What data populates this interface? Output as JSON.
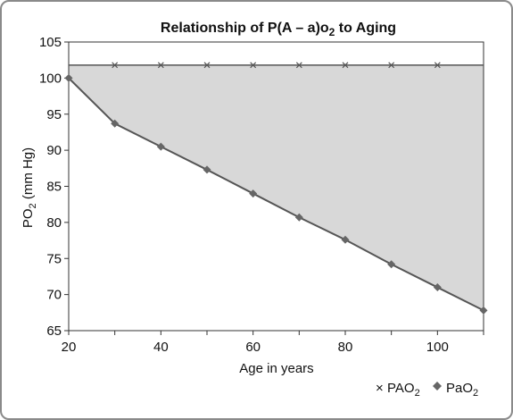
{
  "chart_data": {
    "type": "line",
    "title_main": "Relationship of P(A – a)o",
    "title_sub": "2",
    "title_end": " to Aging",
    "xlabel": "Age in years",
    "ylabel_main": "PO",
    "ylabel_sub": "2",
    "ylabel_end": " (mm Hg)",
    "xlim": [
      20,
      110
    ],
    "ylim": [
      65,
      105
    ],
    "x_ticks": [
      20,
      40,
      60,
      80,
      100
    ],
    "y_ticks": [
      65,
      70,
      75,
      80,
      85,
      90,
      95,
      100,
      105
    ],
    "grid": false,
    "legend_position": "bottom-right",
    "colors": {
      "pao2_alveolar": "#555555",
      "pao2_arterial": "#666666",
      "fill": "#d8d8d8"
    },
    "series": [
      {
        "name_main": "PAO",
        "name_sub": "2",
        "marker": "x",
        "x": [
          20,
          30,
          40,
          50,
          60,
          70,
          80,
          90,
          100,
          110
        ],
        "y": [
          101.8,
          101.8,
          101.8,
          101.8,
          101.8,
          101.8,
          101.8,
          101.8,
          101.8,
          101.8
        ],
        "marker_x": [
          30,
          40,
          50,
          60,
          70,
          80,
          90,
          100
        ]
      },
      {
        "name_main": "PaO",
        "name_sub": "2",
        "marker": "diamond",
        "x": [
          20,
          30,
          40,
          50,
          60,
          70,
          80,
          90,
          100,
          110
        ],
        "y": [
          100,
          93.7,
          90.5,
          87.3,
          84.0,
          80.7,
          77.6,
          74.2,
          71.0,
          67.8
        ]
      }
    ]
  }
}
